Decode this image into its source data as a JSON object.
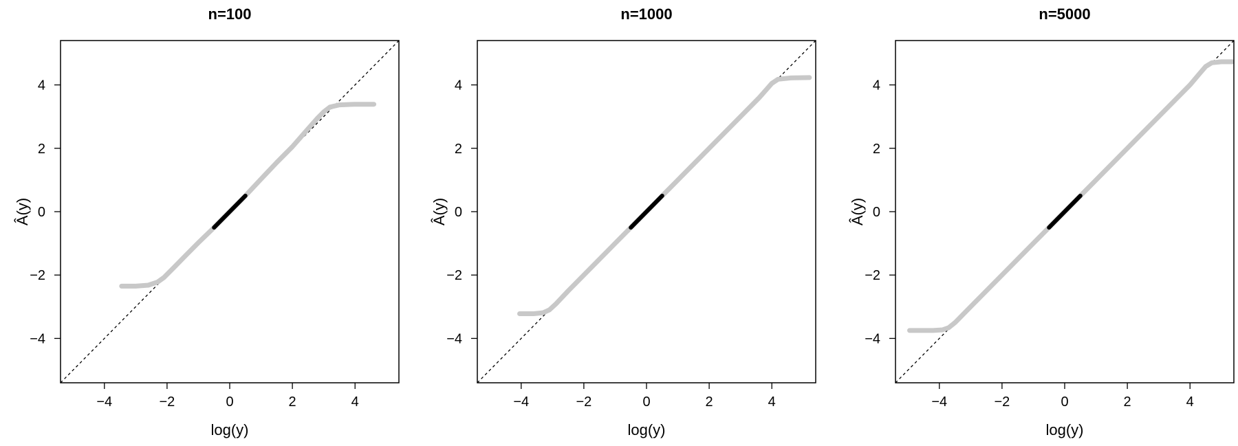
{
  "chart_data": [
    {
      "type": "line",
      "title": "n=100",
      "xlabel": "log(y)",
      "ylabel": "Â(y)",
      "xlim": [
        -5.4,
        5.4
      ],
      "ylim": [
        -5.4,
        5.4
      ],
      "xticks": [
        -4,
        -2,
        0,
        2,
        4
      ],
      "yticks": [
        -4,
        -2,
        0,
        2,
        4
      ],
      "xtick_labels": [
        "−4",
        "−2",
        "0",
        "2",
        "4"
      ],
      "ytick_labels": [
        "−4",
        "−2",
        "0",
        "2",
        "4"
      ],
      "grid": false,
      "series": [
        {
          "style": "reference line y = x, dashed black",
          "x": [
            -5.4,
            5.4
          ],
          "y": [
            -5.4,
            5.4
          ]
        },
        {
          "style": "thick light gray estimate",
          "color": "#c8c8c8",
          "x": [
            -3.45,
            -3.0,
            -2.6,
            -2.3,
            -2.1,
            -1.8,
            -1.4,
            -1.0,
            -0.5,
            0.0,
            0.5,
            1.0,
            1.5,
            2.0,
            2.4,
            2.8,
            3.0,
            3.2,
            3.5,
            4.0,
            4.6
          ],
          "y": [
            -2.35,
            -2.35,
            -2.32,
            -2.22,
            -2.08,
            -1.78,
            -1.38,
            -0.98,
            -0.5,
            0.0,
            0.5,
            1.03,
            1.55,
            2.05,
            2.5,
            2.95,
            3.15,
            3.3,
            3.37,
            3.39,
            3.39
          ]
        },
        {
          "style": "thick black segment",
          "color": "#000000",
          "x": [
            -0.5,
            0.5
          ],
          "y": [
            -0.5,
            0.5
          ]
        }
      ]
    },
    {
      "type": "line",
      "title": "n=1000",
      "xlabel": "log(y)",
      "ylabel": "Â(y)",
      "xlim": [
        -5.4,
        5.4
      ],
      "ylim": [
        -5.4,
        5.4
      ],
      "xticks": [
        -4,
        -2,
        0,
        2,
        4
      ],
      "yticks": [
        -4,
        -2,
        0,
        2,
        4
      ],
      "xtick_labels": [
        "−4",
        "−2",
        "0",
        "2",
        "4"
      ],
      "ytick_labels": [
        "−4",
        "−2",
        "0",
        "2",
        "4"
      ],
      "grid": false,
      "series": [
        {
          "style": "reference line y = x, dashed black",
          "x": [
            -5.4,
            5.4
          ],
          "y": [
            -5.4,
            5.4
          ]
        },
        {
          "style": "thick light gray estimate",
          "color": "#c8c8c8",
          "x": [
            -4.05,
            -3.6,
            -3.3,
            -3.1,
            -2.9,
            -2.5,
            -2.0,
            -1.0,
            0.0,
            1.0,
            2.0,
            3.0,
            3.6,
            3.85,
            4.0,
            4.2,
            4.6,
            5.2
          ],
          "y": [
            -3.22,
            -3.22,
            -3.19,
            -3.1,
            -2.92,
            -2.5,
            -2.0,
            -1.0,
            0.0,
            1.0,
            2.0,
            3.0,
            3.6,
            3.88,
            4.05,
            4.18,
            4.22,
            4.23
          ]
        },
        {
          "style": "thick black segment",
          "color": "#000000",
          "x": [
            -0.5,
            0.5
          ],
          "y": [
            -0.5,
            0.5
          ]
        }
      ]
    },
    {
      "type": "line",
      "title": "n=5000",
      "xlabel": "log(y)",
      "ylabel": "Â(y)",
      "xlim": [
        -5.4,
        5.4
      ],
      "ylim": [
        -5.4,
        5.4
      ],
      "xticks": [
        -4,
        -2,
        0,
        2,
        4
      ],
      "yticks": [
        -4,
        -2,
        0,
        2,
        4
      ],
      "xtick_labels": [
        "−4",
        "−2",
        "0",
        "2",
        "4"
      ],
      "ytick_labels": [
        "−4",
        "−2",
        "0",
        "2",
        "4"
      ],
      "grid": false,
      "series": [
        {
          "style": "reference line y = x, dashed black",
          "x": [
            -5.4,
            5.4
          ],
          "y": [
            -5.4,
            5.4
          ]
        },
        {
          "style": "thick light gray estimate",
          "color": "#c8c8c8",
          "x": [
            -4.95,
            -4.2,
            -3.9,
            -3.7,
            -3.5,
            -3.0,
            -2.0,
            -1.0,
            0.0,
            1.0,
            2.0,
            3.0,
            4.0,
            4.3,
            4.5,
            4.7,
            5.0,
            5.35
          ],
          "y": [
            -3.75,
            -3.75,
            -3.73,
            -3.66,
            -3.5,
            -3.0,
            -2.0,
            -1.0,
            0.0,
            1.0,
            2.0,
            3.0,
            4.0,
            4.35,
            4.58,
            4.7,
            4.73,
            4.73
          ]
        },
        {
          "style": "thick black segment",
          "color": "#000000",
          "x": [
            -0.5,
            0.5
          ],
          "y": [
            -0.5,
            0.5
          ]
        }
      ]
    }
  ]
}
